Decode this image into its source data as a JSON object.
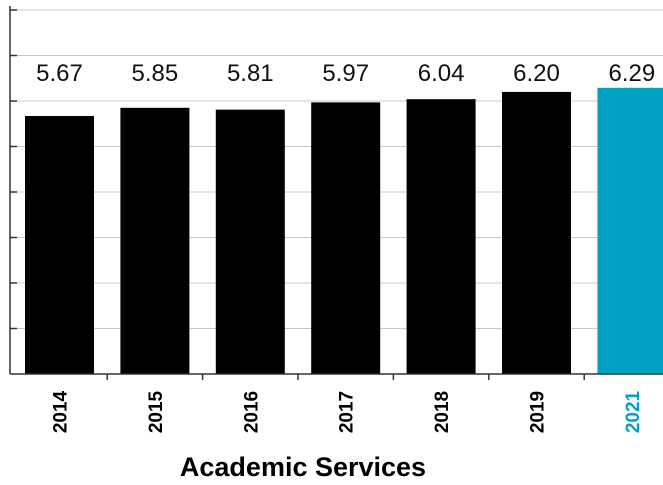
{
  "chart_data": {
    "type": "bar",
    "title": "Academic Services",
    "xlabel": "",
    "ylabel": "",
    "categories": [
      "2014",
      "2015",
      "2016",
      "2017",
      "2018",
      "2019",
      "2021"
    ],
    "values": [
      5.67,
      5.85,
      5.81,
      5.97,
      6.04,
      6.2,
      6.29
    ],
    "value_labels": [
      "5.67",
      "5.85",
      "5.81",
      "5.97",
      "6.04",
      "6.20",
      "6.29"
    ],
    "ylim": [
      0,
      8
    ],
    "grid": true,
    "legend": "none",
    "colors": {
      "default_bar": "#000000",
      "highlight_bar": "#00a3c4",
      "highlight_category": "2021",
      "grid": "#c8c8c8",
      "axis": "#333333"
    }
  }
}
